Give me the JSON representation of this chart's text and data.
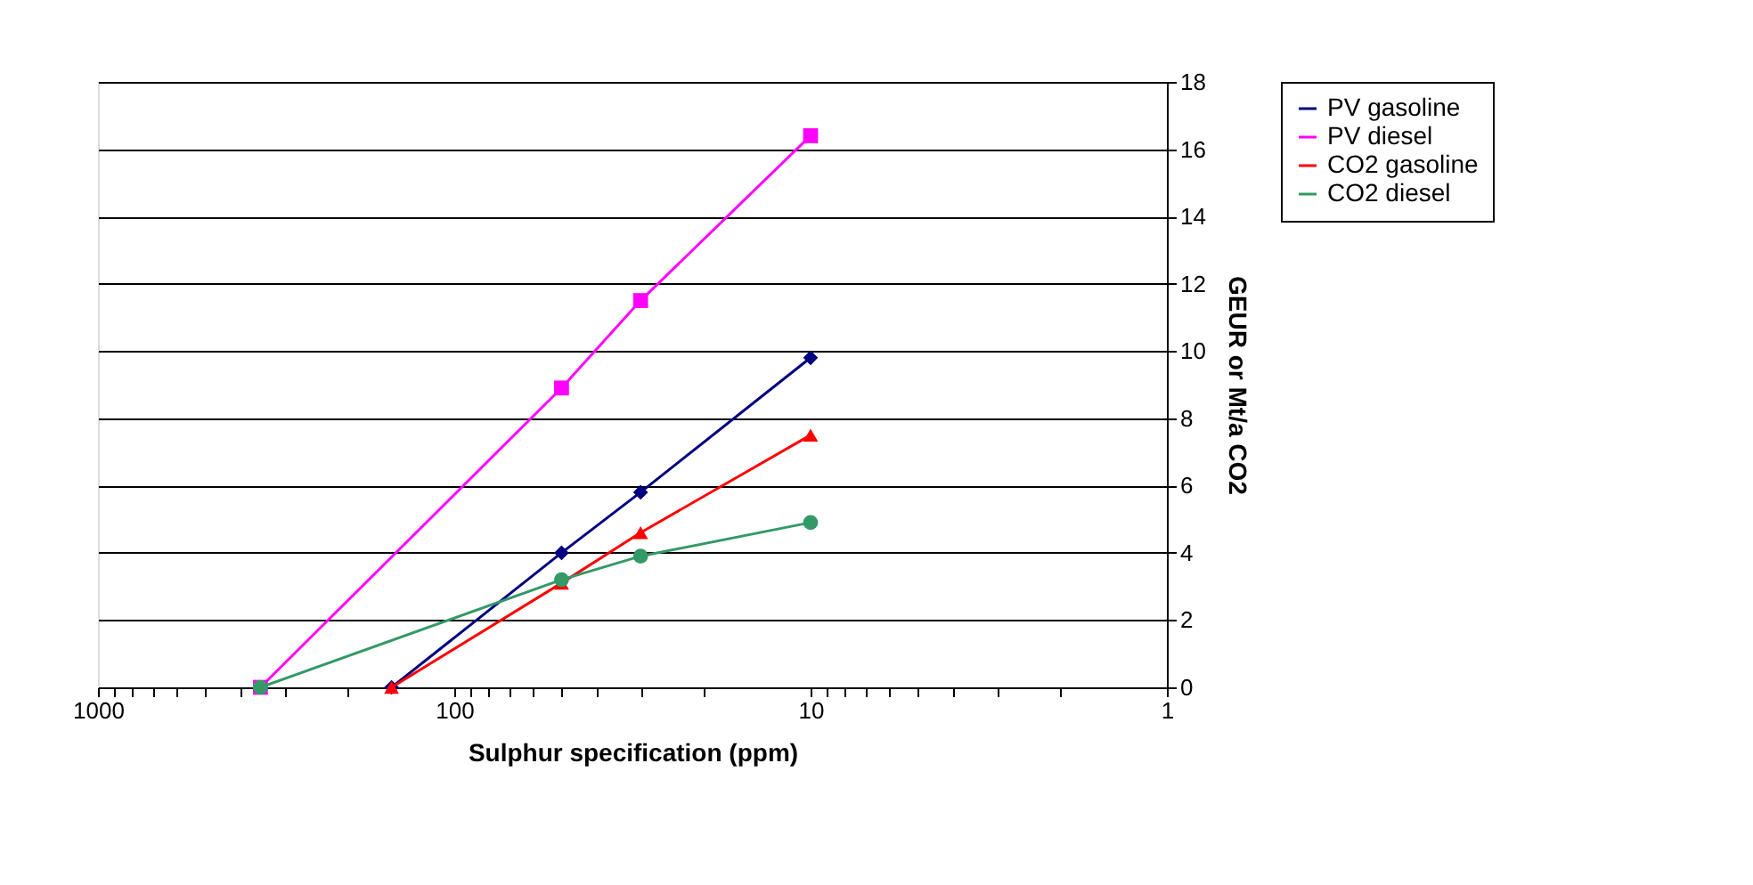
{
  "chart_data": {
    "type": "line",
    "xlabel": "Sulphur specification (ppm)",
    "ylabel": "GEUR or Mt/a CO2",
    "log": "x",
    "xlim": [
      1000,
      1
    ],
    "ylim": [
      0,
      18
    ],
    "xticks": [
      1000,
      {
        "value": 900,
        "label": null
      },
      {
        "value": 800,
        "label": null
      },
      {
        "value": 700,
        "label": null
      },
      {
        "value": 600,
        "label": null
      },
      {
        "value": 500,
        "label": null
      },
      {
        "value": 400,
        "label": null
      },
      {
        "value": 300,
        "label": null
      },
      {
        "value": 200,
        "label": null
      },
      100,
      {
        "value": 90,
        "label": null
      },
      {
        "value": 80,
        "label": null
      },
      {
        "value": 70,
        "label": null
      },
      {
        "value": 60,
        "label": null
      },
      {
        "value": 50,
        "label": null
      },
      {
        "value": 40,
        "label": null
      },
      {
        "value": 30,
        "label": null
      },
      {
        "value": 20,
        "label": null
      },
      10,
      {
        "value": 9,
        "label": null
      },
      {
        "value": 8,
        "label": null
      },
      {
        "value": 7,
        "label": null
      },
      {
        "value": 6,
        "label": null
      },
      {
        "value": 5,
        "label": null
      },
      {
        "value": 4,
        "label": null
      },
      {
        "value": 3,
        "label": null
      },
      {
        "value": 2,
        "label": null
      },
      1
    ],
    "yticks": [
      0,
      2,
      4,
      6,
      8,
      10,
      12,
      14,
      16,
      18
    ],
    "grid": "y",
    "legend": "right",
    "series": [
      {
        "name": "PV gasoline",
        "color": "#000080",
        "marker": "diamond",
        "x": [
          150,
          50,
          30,
          10
        ],
        "values": [
          0,
          4.0,
          5.8,
          9.8
        ]
      },
      {
        "name": "PV diesel",
        "color": "#ff00ff",
        "marker": "square",
        "x": [
          350,
          50,
          30,
          10
        ],
        "values": [
          0,
          8.9,
          11.5,
          16.4
        ]
      },
      {
        "name": "CO2 gasoline",
        "color": "#ff0000",
        "marker": "triangle",
        "x": [
          150,
          50,
          30,
          10
        ],
        "values": [
          0,
          3.1,
          4.6,
          7.5
        ]
      },
      {
        "name": "CO2 diesel",
        "color": "#339966",
        "marker": "circle",
        "x": [
          350,
          50,
          30,
          10
        ],
        "values": [
          0,
          3.2,
          3.9,
          4.9
        ]
      }
    ]
  }
}
